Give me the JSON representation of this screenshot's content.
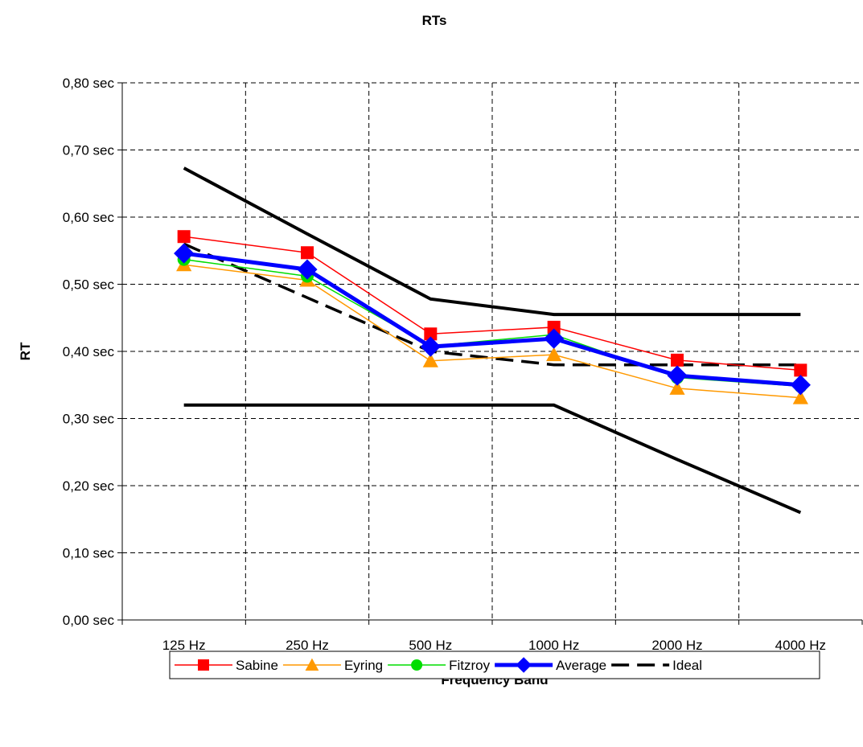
{
  "chart_data": {
    "type": "line",
    "title": "RTs",
    "xlabel": "Frequency Band",
    "ylabel": "RT",
    "categories": [
      "125 Hz",
      "250 Hz",
      "500 Hz",
      "1000 Hz",
      "2000 Hz",
      "4000 Hz"
    ],
    "y_tick_labels": [
      "0,00 sec",
      "0,10 sec",
      "0,20 sec",
      "0,30 sec",
      "0,40 sec",
      "0,50 sec",
      "0,60 sec",
      "0,70 sec",
      "0,80 sec"
    ],
    "ylim": [
      0,
      0.8
    ],
    "y_step": 0.1,
    "grid": true,
    "legend_position": "bottom",
    "series": [
      {
        "name": "Sabine",
        "values": [
          0.571,
          0.547,
          0.426,
          0.436,
          0.387,
          0.372
        ],
        "color": "#ff0000",
        "marker": "square",
        "style": "solid"
      },
      {
        "name": "Eyring",
        "values": [
          0.529,
          0.506,
          0.386,
          0.395,
          0.345,
          0.331
        ],
        "color": "#ff9900",
        "marker": "triangle",
        "style": "solid"
      },
      {
        "name": "Fitzroy",
        "values": [
          0.537,
          0.512,
          0.408,
          0.425,
          0.361,
          0.348
        ],
        "color": "#00dd00",
        "marker": "circle",
        "style": "solid"
      },
      {
        "name": "Average",
        "values": [
          0.546,
          0.522,
          0.407,
          0.419,
          0.364,
          0.35
        ],
        "color": "#0000ff",
        "marker": "diamond",
        "style": "solid-thick"
      },
      {
        "name": "Ideal",
        "values": [
          0.56,
          0.48,
          0.4,
          0.38,
          0.38,
          0.38
        ],
        "color": "#000000",
        "marker": "none",
        "style": "dashed"
      }
    ],
    "bounds": [
      {
        "values": [
          0.673,
          0.575,
          0.478,
          0.455,
          0.455,
          0.455
        ],
        "color": "#000000"
      },
      {
        "values": [
          0.32,
          0.32,
          0.32,
          0.32,
          0.239,
          0.16
        ],
        "color": "#000000"
      }
    ]
  }
}
